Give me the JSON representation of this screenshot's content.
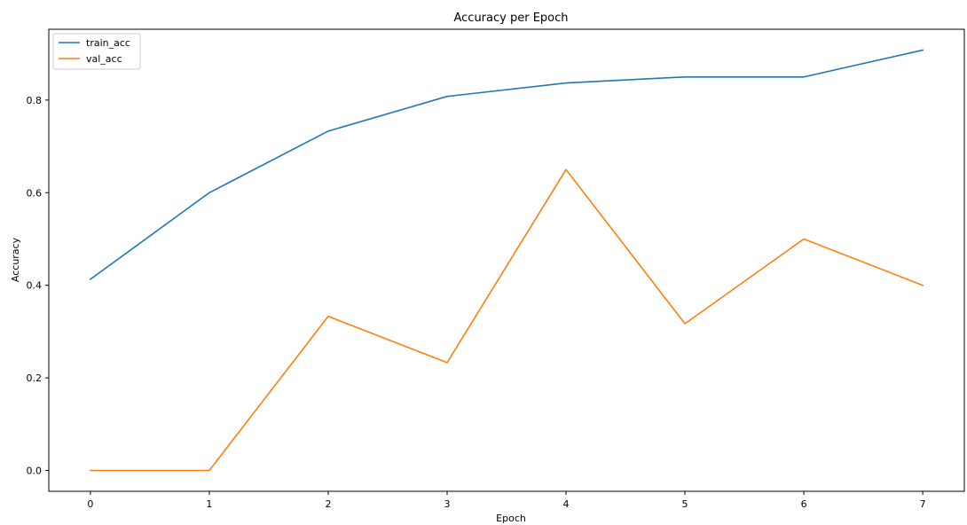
{
  "chart_data": {
    "type": "line",
    "title": "Accuracy per Epoch",
    "xlabel": "Epoch",
    "ylabel": "Accuracy",
    "x": [
      0,
      1,
      2,
      3,
      4,
      5,
      6,
      7
    ],
    "xlim": [
      -0.35,
      7.35
    ],
    "ylim": [
      -0.045,
      0.953
    ],
    "xticks": [
      "0",
      "1",
      "2",
      "3",
      "4",
      "5",
      "6",
      "7"
    ],
    "yticks": [
      "0.0",
      "0.2",
      "0.4",
      "0.6",
      "0.8"
    ],
    "grid": false,
    "legend_position": "upper-left",
    "series": [
      {
        "name": "train_acc",
        "color": "#1f77b4",
        "values": [
          0.413,
          0.6,
          0.733,
          0.808,
          0.837,
          0.85,
          0.85,
          0.908
        ]
      },
      {
        "name": "val_acc",
        "color": "#ff7f0e",
        "values": [
          0.0,
          0.0,
          0.333,
          0.233,
          0.65,
          0.317,
          0.5,
          0.4
        ]
      }
    ]
  }
}
